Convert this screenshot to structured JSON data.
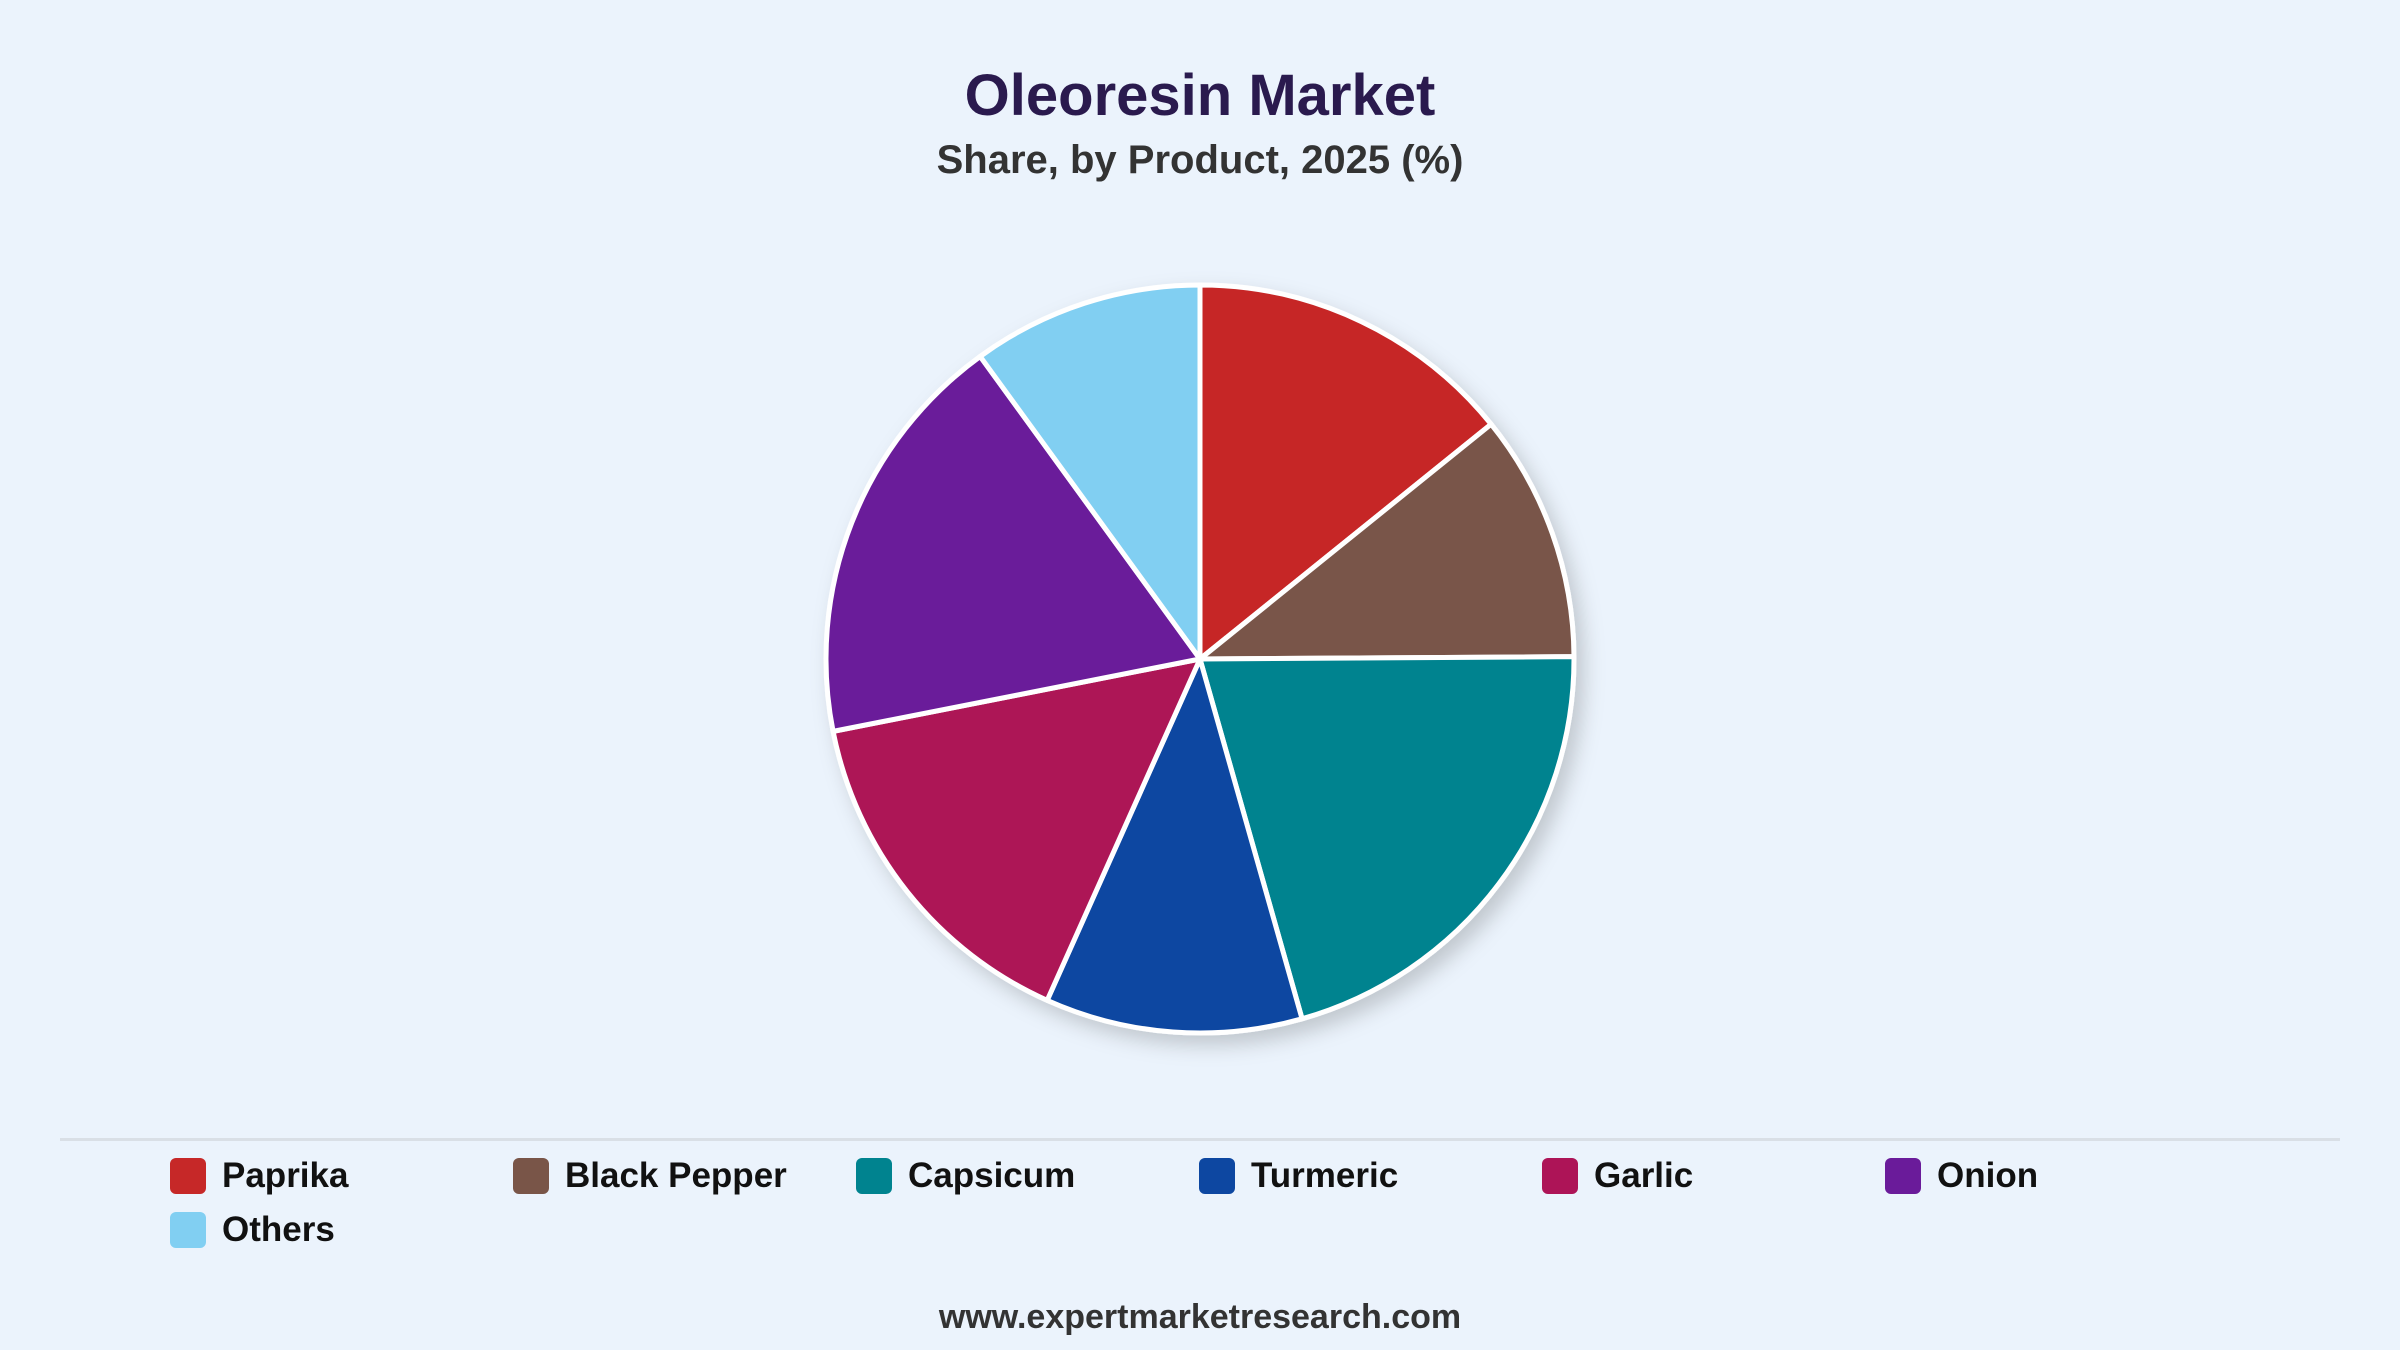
{
  "footer": "www.expertmarketresearch.com",
  "chart_data": {
    "type": "pie",
    "title": "Oleoresin Market",
    "subtitle": "Share, by Product, 2025 (%)",
    "legend_position": "bottom",
    "categories": [
      "Paprika",
      "Black Pepper",
      "Capsicum",
      "Turmeric",
      "Garlic",
      "Onion",
      "Others"
    ],
    "values": [
      14.2,
      10.7,
      20.7,
      11.1,
      15.2,
      18.1,
      10.0
    ],
    "colors": [
      "#c62828",
      "#795548",
      "#00838f",
      "#0d47a1",
      "#ad1457",
      "#6a1b9a",
      "#81cff2"
    ]
  }
}
